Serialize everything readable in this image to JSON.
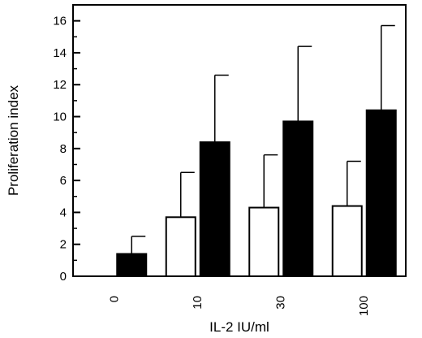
{
  "chart_data": {
    "type": "bar",
    "xlabel": "IL-2 IU/ml",
    "ylabel": "Proliferation index",
    "categories": [
      "0",
      "10",
      "30",
      "100"
    ],
    "ylim": [
      0,
      17
    ],
    "yticks": [
      "0",
      "2",
      "4",
      "6",
      "8",
      "10",
      "12",
      "14",
      "16"
    ],
    "series": [
      {
        "values": [
          0,
          3.7,
          4.3,
          4.4
        ],
        "errors": [
          0,
          2.8,
          3.3,
          2.8
        ],
        "color": "#ffffff"
      },
      {
        "values": [
          1.4,
          8.4,
          9.7,
          10.4
        ],
        "errors": [
          1.1,
          4.2,
          4.7,
          5.3
        ],
        "color": "#000000"
      }
    ],
    "grid": false,
    "legend": "none"
  }
}
